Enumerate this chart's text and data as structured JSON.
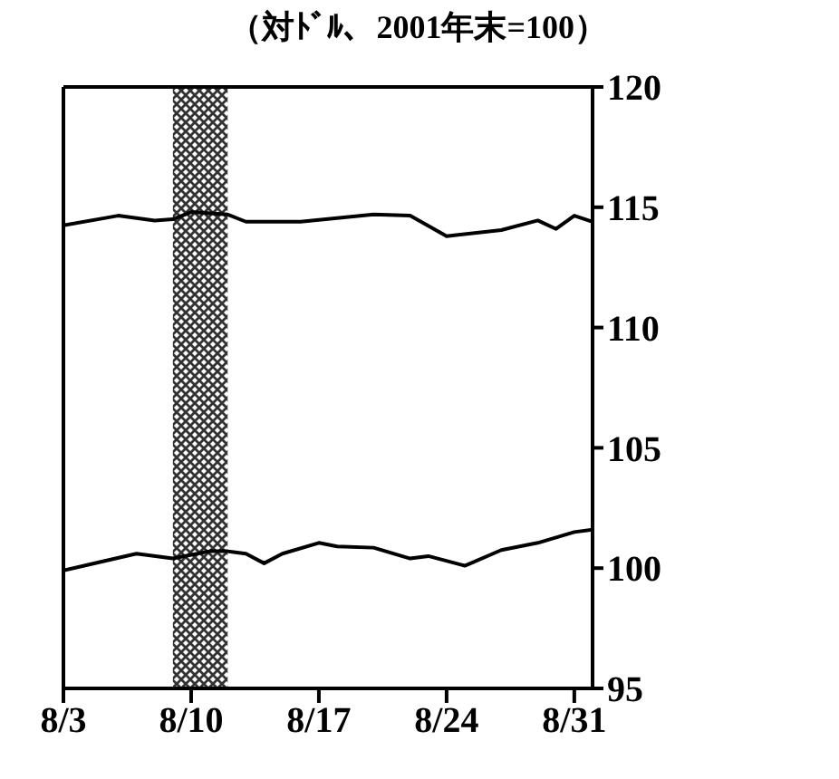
{
  "chart_data": {
    "type": "line",
    "ylabel": "（対ﾄﾞﾙ、2001年末=100）",
    "series": [
      {
        "color": "#000000",
        "x": [
          "--08-03",
          "--08-06",
          "--08-08",
          "--08-09",
          "--08-10",
          "--08-12",
          "--08-13",
          "--08-16",
          "--08-18",
          "--08-20",
          "--08-22",
          "--08-24",
          "--08-27",
          "--08-29",
          "--08-30",
          "--08-31",
          "--09-01"
        ],
        "values": [
          114.25,
          114.65,
          114.45,
          114.5,
          114.8,
          114.7,
          114.4,
          114.4,
          114.55,
          114.7,
          114.65,
          113.8,
          114.05,
          114.45,
          114.1,
          114.65,
          114.4
        ]
      },
      {
        "color": "#000000",
        "x": [
          "--08-03",
          "--08-05",
          "--08-07",
          "--08-09",
          "--08-11",
          "--08-12",
          "--08-13",
          "--08-14",
          "--08-15",
          "--08-17",
          "--08-18",
          "--08-20",
          "--08-22",
          "--08-23",
          "--08-25",
          "--08-27",
          "--08-29",
          "--08-31",
          "--09-01"
        ],
        "values": [
          99.9,
          100.25,
          100.6,
          100.4,
          100.7,
          100.7,
          100.6,
          100.2,
          100.6,
          101.05,
          100.9,
          100.85,
          100.4,
          100.5,
          100.1,
          100.75,
          101.05,
          101.5,
          101.6
        ]
      }
    ],
    "bands": [
      {
        "axis": "x",
        "from": "--08-09",
        "to": "--08-12",
        "color": "#333333"
      }
    ],
    "xlim": [
      "--08-03",
      "--09-01"
    ],
    "xticks": [
      {
        "value": "--08-03",
        "label": "8/3"
      },
      {
        "value": "--08-10",
        "label": "8/10"
      },
      {
        "value": "--08-17",
        "label": "8/17"
      },
      {
        "value": "--08-24",
        "label": "8/24"
      },
      {
        "value": "--08-31",
        "label": "8/31"
      }
    ],
    "ylim": [
      95,
      120
    ],
    "yticks": [
      95,
      100,
      105,
      110,
      115,
      120
    ],
    "marker": "none",
    "line_style": "solid"
  }
}
